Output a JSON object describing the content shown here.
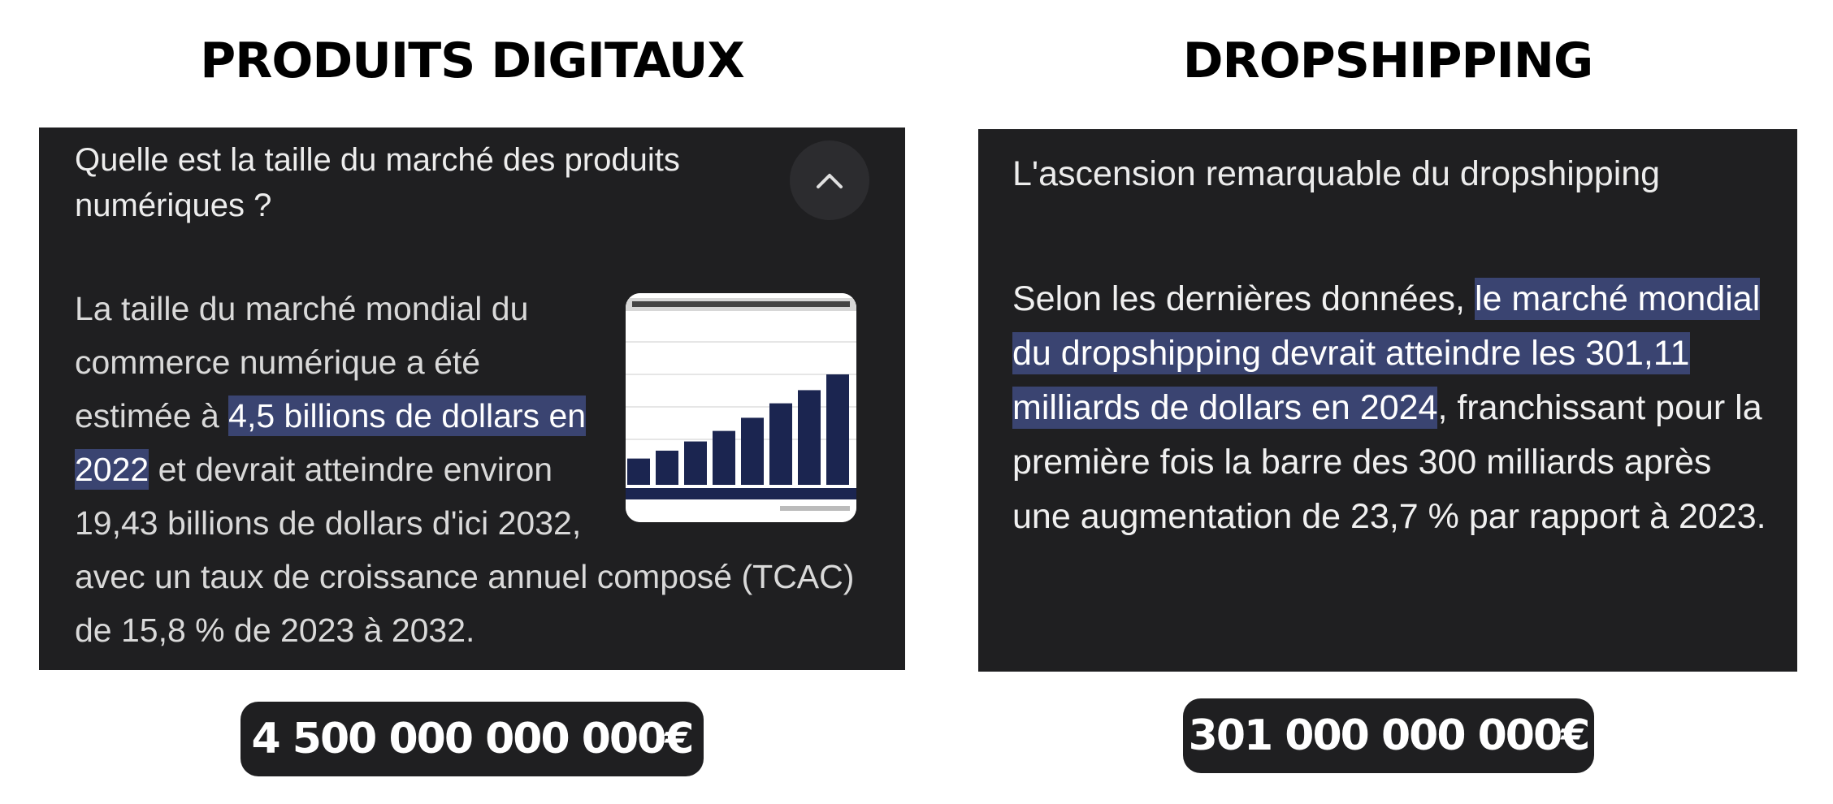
{
  "left": {
    "title": "PRODUITS DIGITAUX",
    "question": "Quelle est la taille du marché des produits numériques ?",
    "collapse_icon": "chevron-up-icon",
    "text": {
      "part1": "La taille du marché mondial du commerce numérique a été estimée à ",
      "highlight": "4,5 billions de dollars en 2022",
      "part2": " et devrait atteindre environ 19,43 billions de dollars d'ici 2032, avec un taux de croissance annuel composé (TCAC) de 15,8 % de 2023 à 2032."
    },
    "amount": "4 500 000 000 000€",
    "thumbnail_chart": {
      "bar_values": [
        2,
        2.6,
        3.3,
        4.1,
        5.1,
        6.2,
        7.2,
        8.4
      ]
    }
  },
  "right": {
    "title": "DROPSHIPPING",
    "heading": "L'ascension remarquable du dropshipping",
    "text": {
      "part1": "Selon les dernières données, ",
      "highlight": "le marché mondial du dropshipping devrait atteindre les 301,11 milliards de dollars en 2024",
      "part2": ", franchissant pour la première fois la barre des 300 milliards après une augmentation de 23,7 % par rapport à 2023."
    },
    "amount": "301 000 000 000€"
  },
  "colors": {
    "panel_bg": "#1f1f21",
    "highlight_bg": "#3a4471",
    "bar_color": "#1b2550"
  }
}
